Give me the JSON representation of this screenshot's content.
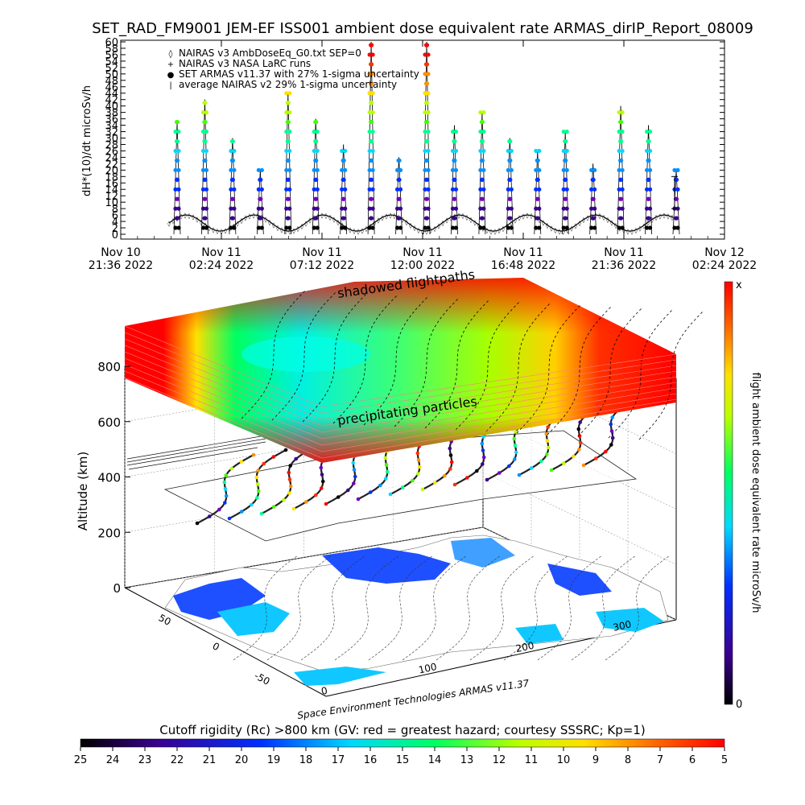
{
  "chart_data": [
    {
      "type": "scatter",
      "title": "SET_RAD_FM9001  JEM-EF ISS001 ambient dose equivalent rate ARMAS_dirIP_Report_08009",
      "ylabel": "dH*(10)/dt microSv/h",
      "ylim": [
        0,
        60
      ],
      "ytick_labels": [
        "0",
        "2",
        "4",
        "6",
        "8",
        "10",
        "12",
        "14",
        "16",
        "18",
        "20",
        "22",
        "24",
        "26",
        "28",
        "30",
        "32",
        "34",
        "36",
        "38",
        "40",
        "42",
        "44",
        "46",
        "48",
        "50",
        "52",
        "54",
        "56",
        "58",
        "60"
      ],
      "xtick_labels": [
        {
          "date": "Nov 10",
          "time": "21:36 2022"
        },
        {
          "date": "Nov 11",
          "time": "02:24 2022"
        },
        {
          "date": "Nov 11",
          "time": "07:12 2022"
        },
        {
          "date": "Nov 11",
          "time": "12:00 2022"
        },
        {
          "date": "Nov 11",
          "time": "16:48 2022"
        },
        {
          "date": "Nov 11",
          "time": "21:36 2022"
        },
        {
          "date": "Nov 12",
          "time": "02:24 2022"
        }
      ],
      "legend_placement": "top-left",
      "legend": [
        {
          "symbol": "◊",
          "text": "NAIRAS v3 AmbDoseEq_G0.txt SEP=0"
        },
        {
          "symbol": "+",
          "text": "NAIRAS v3 NASA LaRC runs"
        },
        {
          "symbol": "●",
          "text": "SET ARMAS v11.37 with 27% 1-sigma uncertainty"
        },
        {
          "symbol": "|",
          "text": "average NAIRAS v2 29% 1-sigma uncertainty"
        }
      ],
      "series": [
        {
          "name": "NAIRAS v3 AmbDoseEq_G0.txt SEP=0",
          "description_values_approx": "oscillating 1-6 microSv/h along orbit"
        },
        {
          "name": "SET ARMAS v11.37 with 27% 1-sigma uncertainty",
          "values_approx_peaks": [
            35,
            42,
            30,
            20,
            44,
            36,
            28,
            60,
            24,
            60,
            34,
            38,
            30,
            26,
            32,
            22,
            40,
            34,
            20
          ]
        }
      ]
    },
    {
      "type": "surface3d",
      "zlabel": "Altitude (km)",
      "ztick_labels": [
        "0",
        "200",
        "400",
        "600",
        "800"
      ],
      "xtick_labels": [
        "0",
        "100",
        "200",
        "300"
      ],
      "ytick_labels": [
        "-50",
        "0",
        "50"
      ],
      "annotations": [
        "shadowed flightpaths",
        "precipitating particles"
      ],
      "credit": "Space Environment Technologies ARMAS v11.37"
    },
    {
      "type": "colorbar",
      "orientation": "vertical",
      "label": "flight ambient dose equivalent rate microSv/h",
      "top_label": "x",
      "bottom_label": "0"
    },
    {
      "type": "colorbar",
      "orientation": "horizontal",
      "title": "Cutoff rigidity (Rc) >800 km (GV: red = greatest hazard; courtesy SSSRC; Kp=1)",
      "tick_labels": [
        "25",
        "24",
        "23",
        "22",
        "21",
        "20",
        "19",
        "18",
        "17",
        "16",
        "15",
        "14",
        "13",
        "12",
        "11",
        "10",
        "9",
        "8",
        "7",
        "6",
        "5"
      ]
    }
  ]
}
